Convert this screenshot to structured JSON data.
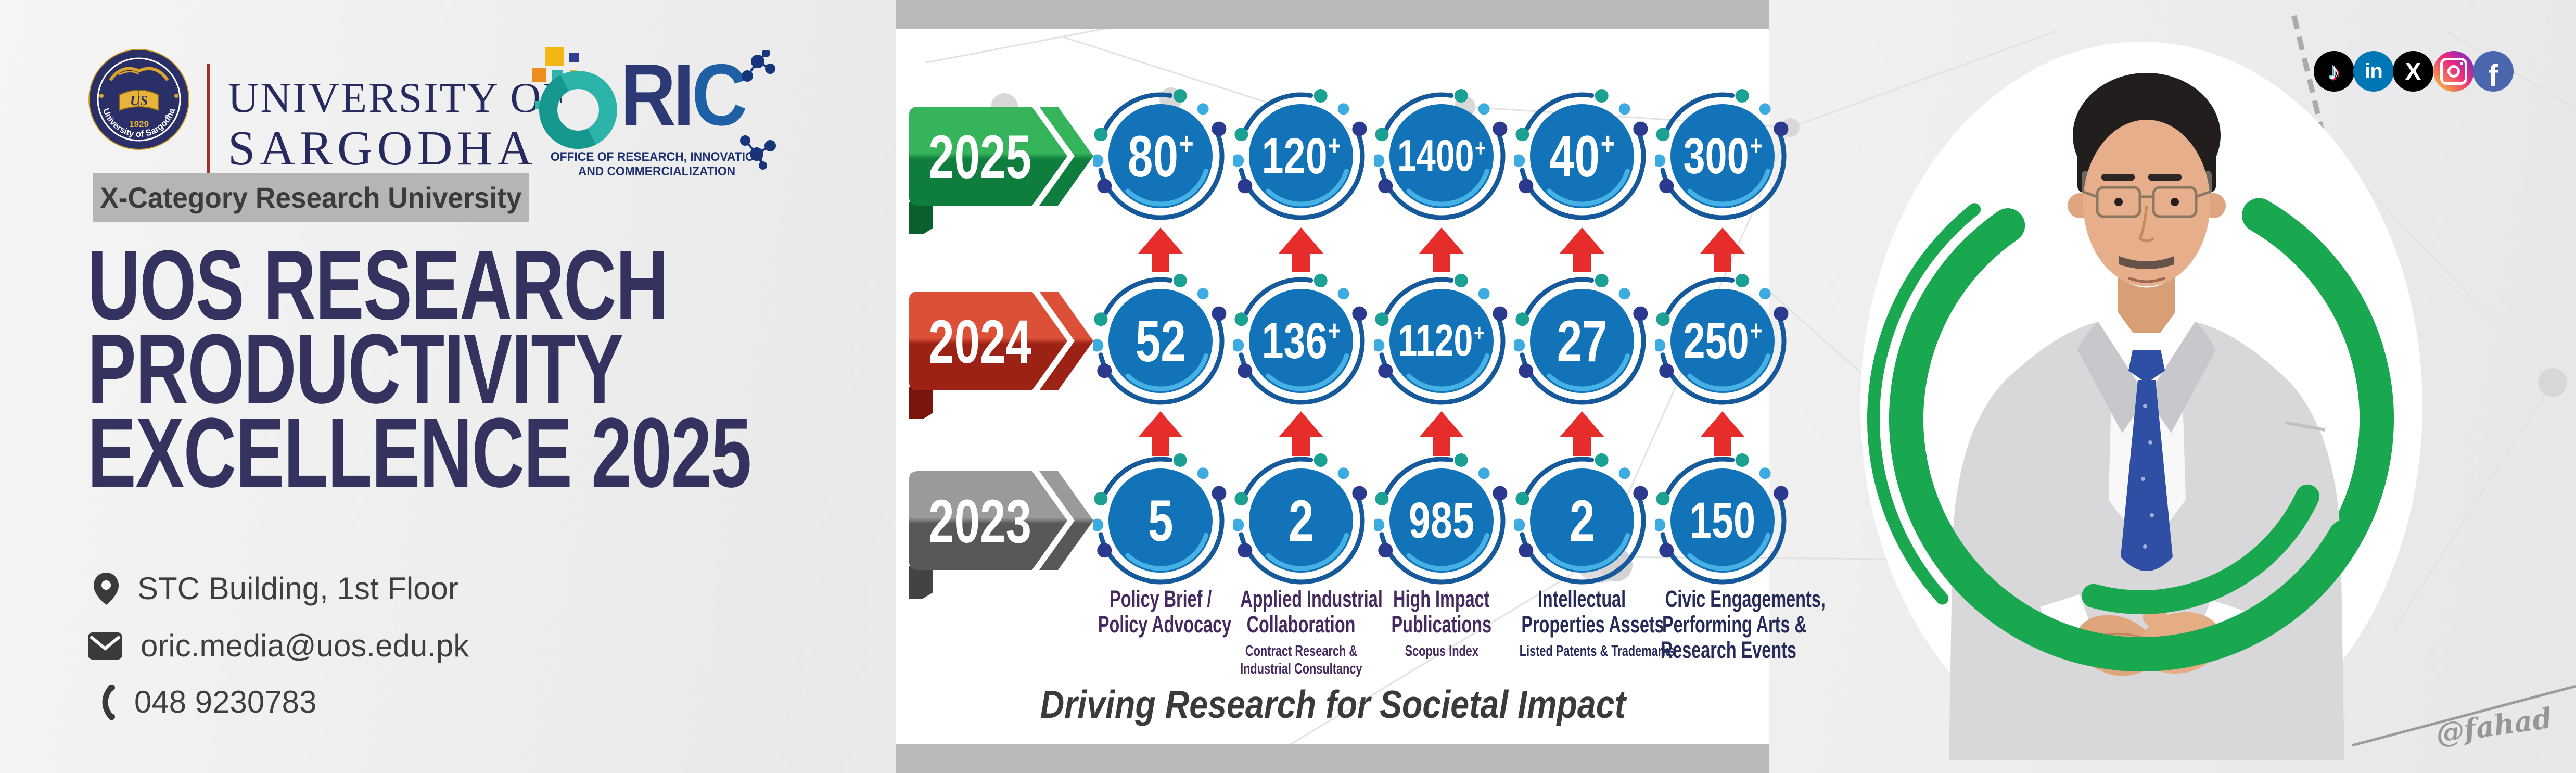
{
  "header": {
    "seal": {
      "year": "1929",
      "ring_text": "University of Sargodha"
    },
    "university": {
      "line1": "UNIVERSITY OF",
      "line2": "SARGODHA"
    },
    "oric": {
      "letters_ri": "RI",
      "letters_c": "C",
      "dept_line1": "OFFICE OF RESEARCH, INNOVATION",
      "dept_line2": "AND COMMERCIALIZATION"
    },
    "badge": "X-Category Research University"
  },
  "title": {
    "line1": "UOS RESEARCH",
    "line2": "PRODUCTIVITY",
    "line3": "EXCELLENCE 2025"
  },
  "contact": {
    "address": "STC Building, 1st Floor",
    "email": "oric.media@uos.edu.pk",
    "phone": "048 9230783"
  },
  "tagline": "Driving Research for Societal Impact",
  "watermark": "@fahad",
  "social": [
    {
      "id": "tiktok",
      "glyph": "♪",
      "bg": "#010101"
    },
    {
      "id": "linkedin",
      "glyph": "in",
      "bg": "#0077b5"
    },
    {
      "id": "x",
      "glyph": "X",
      "bg": "#000000"
    },
    {
      "id": "instagram",
      "glyph": "",
      "bg": "linear-gradient(45deg,#f9ce34 0%,#ee2a7b 55%,#6228d7 100%)"
    },
    {
      "id": "facebook",
      "glyph": "f",
      "bg": "#4a66ad"
    }
  ],
  "accent_colors": {
    "circle_blue": "#1273b9",
    "ring_blue": "#15599b",
    "crescent_blue": "#46b1e4",
    "dot_teal": "#1ba192",
    "dot_lightblue": "#3cabdf",
    "dot_navy": "#2b3a8f",
    "arrow_red": "#e62d2c",
    "green_ring": "#19a74f",
    "title_navy": "#34325f"
  },
  "years_style": [
    {
      "top": "#36b45c",
      "bottom": "#0f7d3d",
      "tail": "#0a5f2e"
    },
    {
      "top": "#dd5038",
      "bottom": "#9b2214",
      "tail": "#7a150c"
    },
    {
      "top": "#9a9a9a",
      "bottom": "#585858",
      "tail": "#434343"
    }
  ],
  "columns_display": [
    {
      "main": [
        "Policy Brief /",
        "Policy Advocacy"
      ],
      "sub": [],
      "color": "#46295f"
    },
    {
      "main": [
        "Applied Industrial",
        "Collaboration"
      ],
      "sub": [
        "Contract Research &",
        "Industrial Consultancy"
      ],
      "color": "#46295f"
    },
    {
      "main": [
        "High Impact",
        "Publications"
      ],
      "sub": [
        "Scopus Index"
      ],
      "color": "#46295f"
    },
    {
      "main": [
        "Intellectual",
        "Properties Assets"
      ],
      "sub": [
        "Listed Patents & Trademarks"
      ],
      "color": "#272b59"
    },
    {
      "main": [
        "Civic Engagements,",
        "Performing Arts &",
        "Research Events"
      ],
      "sub": [],
      "color": "#272b59"
    }
  ],
  "chart_data": {
    "type": "table",
    "title": "UOS Research Productivity Excellence 2025",
    "categories": [
      "Policy Brief / Policy Advocacy",
      "Applied Industrial Collaboration (Contract Research & Industrial Consultancy)",
      "High Impact Publications (Scopus Index)",
      "Intellectual Properties Assets (Listed Patents & Trademarks)",
      "Civic Engagements, Performing Arts & Research Events"
    ],
    "series": [
      {
        "name": "2025",
        "values": [
          "80+",
          "120+",
          "1400+",
          "40+",
          "300+"
        ]
      },
      {
        "name": "2024",
        "values": [
          "52",
          "136+",
          "1120+",
          "27",
          "250+"
        ]
      },
      {
        "name": "2023",
        "values": [
          "5",
          "2",
          "985",
          "2",
          "150"
        ]
      }
    ]
  }
}
